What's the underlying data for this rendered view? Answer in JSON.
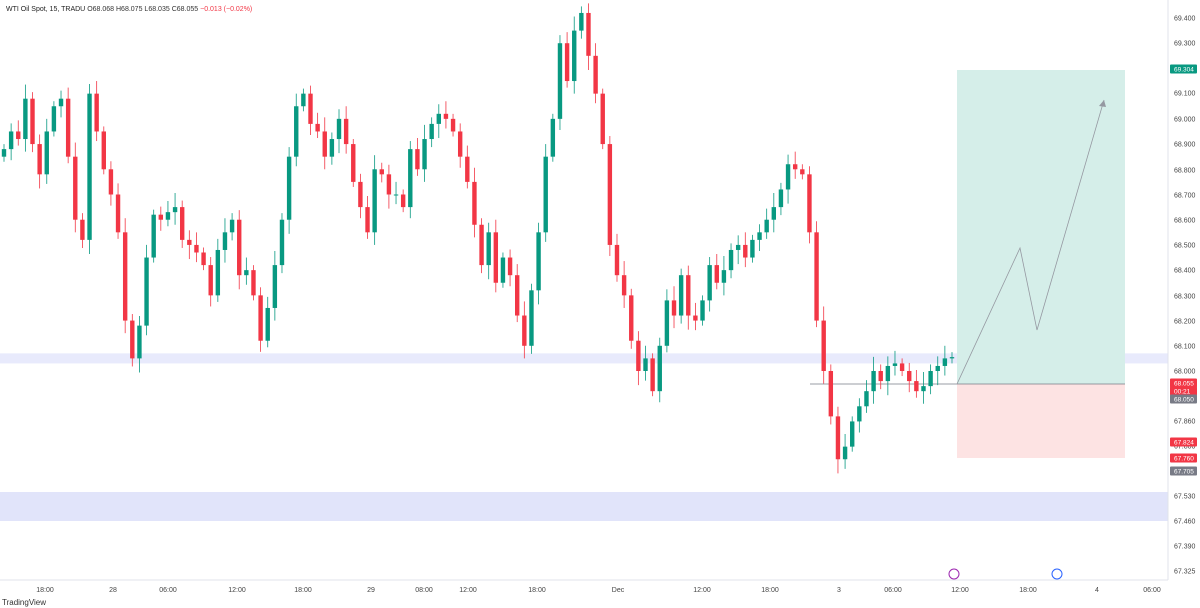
{
  "legend": {
    "symbol": "WTI Oil Spot, 15, TRADU",
    "open": "O68.068",
    "high": "H68.075",
    "low": "L68.035",
    "close": "C68.055",
    "change": "−0.013 (−0.02%)"
  },
  "branding": "TradingView",
  "chart_data": {
    "type": "candlestick",
    "y_ticks": [
      "69.400",
      "69.300",
      "69.200",
      "69.100",
      "69.000",
      "68.900",
      "68.800",
      "68.700",
      "68.600",
      "68.500",
      "68.400",
      "68.300",
      "68.200",
      "68.100",
      "68.000",
      "67.920",
      "67.860",
      "67.800",
      "67.600",
      "67.530",
      "67.460",
      "67.390",
      "67.325"
    ],
    "x_ticks": [
      "18:00",
      "28",
      "06:00",
      "12:00",
      "18:00",
      "29",
      "08:00",
      "12:00",
      "18:00",
      "Dec",
      "12:00",
      "18:00",
      "3",
      "06:00",
      "12:00",
      "18:00",
      "4",
      "06:00"
    ],
    "price_tags": [
      {
        "label": "69.304",
        "color": "#089981"
      },
      {
        "label": "68.055",
        "color": "#f23645"
      },
      {
        "label": "00:21",
        "color": "#f23645"
      },
      {
        "label": "68.050",
        "color": "#787b86"
      },
      {
        "label": "67.824",
        "color": "#f23645"
      },
      {
        "label": "67.760",
        "color": "#f23645"
      },
      {
        "label": "67.705",
        "color": "#787b86"
      }
    ],
    "position": {
      "type": "long",
      "entry": 68.055,
      "target": 69.304,
      "stop": 67.76,
      "target_color": "#d5eee9",
      "stop_color": "#fde3e3"
    },
    "zones": [
      {
        "from": 67.53,
        "to": 67.64,
        "color": "#e1e4fa"
      },
      {
        "from": 68.03,
        "to": 68.07,
        "color": "#e8eafc"
      }
    ],
    "projection_path": [
      [
        68.055,
        0
      ],
      [
        68.6,
        0.3
      ],
      [
        68.25,
        0.45
      ],
      [
        69.18,
        0.85
      ]
    ],
    "up_color": "#089981",
    "down_color": "#f23645",
    "closes": [
      68.88,
      68.95,
      68.92,
      69.08,
      68.9,
      68.78,
      68.95,
      69.05,
      69.08,
      68.85,
      68.6,
      68.52,
      69.1,
      68.95,
      68.8,
      68.7,
      68.55,
      68.2,
      68.05,
      68.18,
      68.45,
      68.62,
      68.6,
      68.63,
      68.65,
      68.52,
      68.5,
      68.47,
      68.42,
      68.3,
      68.48,
      68.55,
      68.6,
      68.38,
      68.4,
      68.3,
      68.12,
      68.25,
      68.42,
      68.6,
      68.85,
      69.05,
      69.1,
      68.98,
      68.95,
      68.85,
      68.92,
      69.0,
      68.9,
      68.75,
      68.65,
      68.55,
      68.8,
      68.78,
      68.7,
      68.7,
      68.65,
      68.88,
      68.8,
      68.92,
      68.98,
      69.02,
      69.0,
      68.95,
      68.85,
      68.75,
      68.58,
      68.42,
      68.55,
      68.35,
      68.45,
      68.38,
      68.22,
      68.1,
      68.32,
      68.55,
      68.85,
      69.0,
      69.3,
      69.15,
      69.35,
      69.42,
      69.25,
      69.1,
      68.9,
      68.5,
      68.38,
      68.3,
      68.12,
      68.0,
      68.05,
      67.92,
      68.1,
      68.28,
      68.22,
      68.38,
      68.22,
      68.2,
      68.28,
      68.42,
      68.35,
      68.4,
      68.48,
      68.5,
      68.45,
      68.52,
      68.55,
      68.6,
      68.65,
      68.72,
      68.82,
      68.8,
      68.78,
      68.55,
      68.2,
      68.0,
      67.82,
      67.65,
      67.7,
      67.8,
      67.86,
      67.92,
      68.0,
      67.96,
      68.02,
      68.03,
      68.0,
      67.96,
      67.92,
      67.94,
      68.0,
      68.02,
      68.05,
      68.055
    ]
  }
}
